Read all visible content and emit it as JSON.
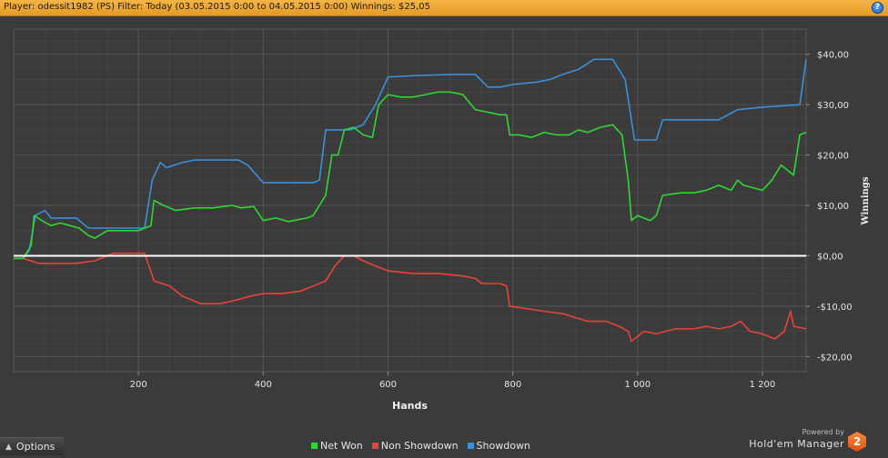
{
  "header": {
    "title": "Player: odessit1982 (PS) Filter: Today (03.05.2015 0:00 to 04.05.2015 0:00) Winnings: $25,05",
    "help_label": "?"
  },
  "options": {
    "label": "Options",
    "icon": "expand-arrow-icon"
  },
  "brand": {
    "powered_by": "Powered by",
    "name": "Hold'em Manager",
    "logo_text": "2"
  },
  "colors": {
    "net_won": "#31d634",
    "non_showdown": "#e8433a",
    "showdown": "#3c8fd9",
    "zero_line": "#ffffff",
    "grid": "#555555",
    "plot_bg": "#3b3b3b"
  },
  "chart_data": {
    "type": "line",
    "title": "",
    "xlabel": "Hands",
    "ylabel": "Winnings",
    "xlim": [
      0,
      1270
    ],
    "ylim": [
      -23,
      45
    ],
    "xticks": [
      200,
      400,
      600,
      800,
      1000,
      1200
    ],
    "xtick_labels": [
      "200",
      "400",
      "600",
      "800",
      "1 000",
      "1 200"
    ],
    "yticks": [
      -20,
      -10,
      0,
      10,
      20,
      30,
      40
    ],
    "ytick_labels": [
      "-$20,00",
      "-$10,00",
      "$0,00",
      "$10,00",
      "$20,00",
      "$30,00",
      "$40,00"
    ],
    "grid": true,
    "legend_position": "bottom-center",
    "series": [
      {
        "name": "Net Won",
        "points": [
          [
            0,
            -0.5
          ],
          [
            15,
            -0.5
          ],
          [
            28,
            2
          ],
          [
            33,
            8
          ],
          [
            45,
            7
          ],
          [
            60,
            6
          ],
          [
            75,
            6.5
          ],
          [
            90,
            6
          ],
          [
            105,
            5.5
          ],
          [
            120,
            4
          ],
          [
            130,
            3.5
          ],
          [
            150,
            5
          ],
          [
            175,
            5
          ],
          [
            200,
            5
          ],
          [
            210,
            5.5
          ],
          [
            220,
            6
          ],
          [
            225,
            11
          ],
          [
            240,
            10
          ],
          [
            260,
            9
          ],
          [
            290,
            9.5
          ],
          [
            320,
            9.5
          ],
          [
            350,
            10
          ],
          [
            365,
            9.5
          ],
          [
            385,
            9.8
          ],
          [
            400,
            7
          ],
          [
            420,
            7.5
          ],
          [
            440,
            6.8
          ],
          [
            470,
            7.5
          ],
          [
            480,
            8
          ],
          [
            490,
            10
          ],
          [
            500,
            12
          ],
          [
            510,
            20
          ],
          [
            520,
            20
          ],
          [
            530,
            25
          ],
          [
            545,
            25.5
          ],
          [
            560,
            24
          ],
          [
            575,
            23.5
          ],
          [
            585,
            30
          ],
          [
            600,
            32
          ],
          [
            620,
            31.5
          ],
          [
            640,
            31.5
          ],
          [
            660,
            32
          ],
          [
            680,
            32.5
          ],
          [
            700,
            32.5
          ],
          [
            720,
            32
          ],
          [
            740,
            29
          ],
          [
            760,
            28.5
          ],
          [
            780,
            28
          ],
          [
            790,
            28
          ],
          [
            795,
            24
          ],
          [
            810,
            24
          ],
          [
            830,
            23.5
          ],
          [
            850,
            24.5
          ],
          [
            870,
            24
          ],
          [
            890,
            24
          ],
          [
            905,
            25
          ],
          [
            920,
            24.5
          ],
          [
            940,
            25.5
          ],
          [
            960,
            26
          ],
          [
            975,
            24
          ],
          [
            985,
            15
          ],
          [
            990,
            7
          ],
          [
            1000,
            8
          ],
          [
            1020,
            7
          ],
          [
            1030,
            8
          ],
          [
            1040,
            12
          ],
          [
            1070,
            12.5
          ],
          [
            1090,
            12.5
          ],
          [
            1110,
            13
          ],
          [
            1130,
            14
          ],
          [
            1150,
            13
          ],
          [
            1160,
            15
          ],
          [
            1170,
            14
          ],
          [
            1185,
            13.5
          ],
          [
            1200,
            13
          ],
          [
            1215,
            15
          ],
          [
            1230,
            18
          ],
          [
            1250,
            16
          ],
          [
            1260,
            24
          ],
          [
            1270,
            24.5
          ]
        ]
      },
      {
        "name": "Non Showdown",
        "points": [
          [
            0,
            -0.5
          ],
          [
            15,
            -0.5
          ],
          [
            40,
            -1.5
          ],
          [
            70,
            -1.5
          ],
          [
            100,
            -1.5
          ],
          [
            130,
            -1
          ],
          [
            160,
            0.5
          ],
          [
            210,
            0.5
          ],
          [
            225,
            -5
          ],
          [
            250,
            -6
          ],
          [
            270,
            -8
          ],
          [
            300,
            -9.5
          ],
          [
            330,
            -9.5
          ],
          [
            350,
            -9
          ],
          [
            380,
            -8
          ],
          [
            400,
            -7.5
          ],
          [
            430,
            -7.5
          ],
          [
            460,
            -7
          ],
          [
            480,
            -6
          ],
          [
            500,
            -5
          ],
          [
            515,
            -2
          ],
          [
            530,
            0
          ],
          [
            545,
            0
          ],
          [
            560,
            -1
          ],
          [
            580,
            -2
          ],
          [
            600,
            -3
          ],
          [
            640,
            -3.5
          ],
          [
            680,
            -3.5
          ],
          [
            720,
            -4
          ],
          [
            740,
            -4.5
          ],
          [
            750,
            -5.5
          ],
          [
            765,
            -5.5
          ],
          [
            780,
            -5.5
          ],
          [
            790,
            -6
          ],
          [
            795,
            -10
          ],
          [
            850,
            -11
          ],
          [
            880,
            -11.5
          ],
          [
            920,
            -13
          ],
          [
            950,
            -13
          ],
          [
            970,
            -14
          ],
          [
            985,
            -15
          ],
          [
            990,
            -17
          ],
          [
            1000,
            -16
          ],
          [
            1010,
            -15
          ],
          [
            1030,
            -15.5
          ],
          [
            1060,
            -14.5
          ],
          [
            1090,
            -14.5
          ],
          [
            1110,
            -14
          ],
          [
            1130,
            -14.5
          ],
          [
            1150,
            -14
          ],
          [
            1165,
            -13
          ],
          [
            1180,
            -15
          ],
          [
            1200,
            -15.5
          ],
          [
            1220,
            -16.5
          ],
          [
            1235,
            -15
          ],
          [
            1245,
            -11
          ],
          [
            1250,
            -14
          ],
          [
            1270,
            -14.5
          ]
        ]
      },
      {
        "name": "Showdown",
        "points": [
          [
            0,
            -0.5
          ],
          [
            15,
            -0.5
          ],
          [
            25,
            1
          ],
          [
            35,
            8
          ],
          [
            50,
            9
          ],
          [
            60,
            7.5
          ],
          [
            100,
            7.5
          ],
          [
            120,
            5.5
          ],
          [
            160,
            5.5
          ],
          [
            180,
            5.5
          ],
          [
            210,
            5.5
          ],
          [
            222,
            15
          ],
          [
            235,
            18.5
          ],
          [
            245,
            17.5
          ],
          [
            270,
            18.5
          ],
          [
            290,
            19
          ],
          [
            340,
            19
          ],
          [
            360,
            19
          ],
          [
            375,
            18
          ],
          [
            400,
            14.5
          ],
          [
            450,
            14.5
          ],
          [
            480,
            14.5
          ],
          [
            490,
            15
          ],
          [
            500,
            25
          ],
          [
            540,
            25
          ],
          [
            560,
            26
          ],
          [
            580,
            30
          ],
          [
            600,
            35.5
          ],
          [
            650,
            35.8
          ],
          [
            700,
            36
          ],
          [
            740,
            36
          ],
          [
            760,
            33.5
          ],
          [
            780,
            33.5
          ],
          [
            800,
            34
          ],
          [
            840,
            34.5
          ],
          [
            860,
            35
          ],
          [
            880,
            36
          ],
          [
            905,
            37
          ],
          [
            930,
            39
          ],
          [
            960,
            39
          ],
          [
            980,
            35
          ],
          [
            995,
            23
          ],
          [
            1010,
            23
          ],
          [
            1030,
            23
          ],
          [
            1040,
            27
          ],
          [
            1080,
            27
          ],
          [
            1100,
            27
          ],
          [
            1130,
            27
          ],
          [
            1160,
            29
          ],
          [
            1200,
            29.5
          ],
          [
            1260,
            30
          ],
          [
            1270,
            39
          ]
        ]
      }
    ]
  }
}
